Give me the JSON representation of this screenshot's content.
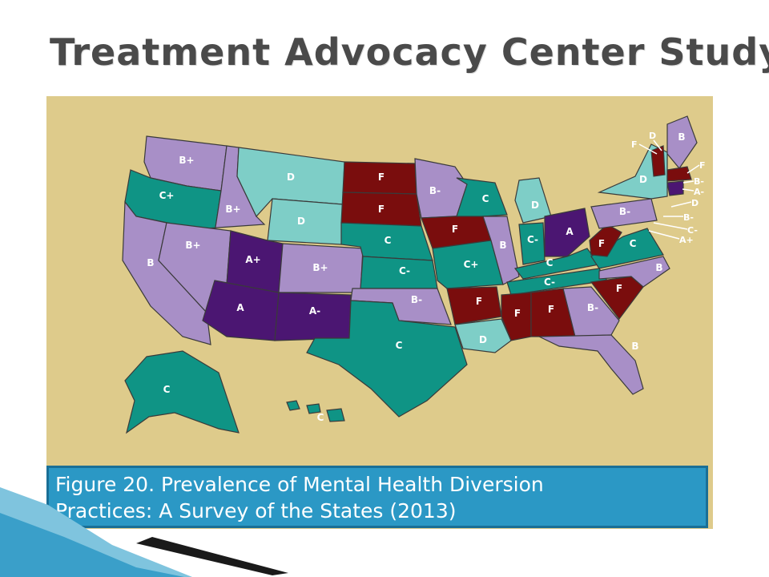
{
  "title": "Treatment Advocacy Center Study",
  "caption": {
    "line1": "Figure 20. Prevalence of Mental Health Diversion",
    "line2": "Practices: A Survey of the States (2013)"
  },
  "colors": {
    "background": "#decb8b",
    "grade_A": "#4b1672",
    "grade_B": "#a88fc7",
    "grade_C": "#0f9485",
    "grade_D": "#7ecec7",
    "grade_F": "#7a0d0d",
    "caption_bg": "#2b98c5"
  },
  "map_labels": {
    "wa": "B+",
    "or": "C+",
    "ca": "B",
    "id": "B+",
    "nv": "B+",
    "mt": "D",
    "wy": "D",
    "ut": "A+",
    "co": "B+",
    "az": "A",
    "nm": "A-",
    "nd": "F",
    "sd": "F",
    "ne": "C",
    "ks": "C-",
    "ok": "B-",
    "tx": "C",
    "mn": "B-",
    "ia": "F",
    "mo": "C+",
    "ar": "F",
    "la": "D",
    "wi": "C",
    "il": "B",
    "mi": "D",
    "in": "C-",
    "oh": "A",
    "ky": "C",
    "tn": "C-",
    "ms": "F",
    "al": "F",
    "ga": "B-",
    "fl": "B",
    "sc": "F",
    "nc": "B",
    "va": "C",
    "wv": "F",
    "pa": "B-",
    "ny": "D",
    "me": "B",
    "ak": "C",
    "hi": "C"
  },
  "callouts": [
    "F",
    "D",
    "F",
    "B-",
    "A-",
    "D",
    "B-",
    "C-",
    "A+"
  ]
}
